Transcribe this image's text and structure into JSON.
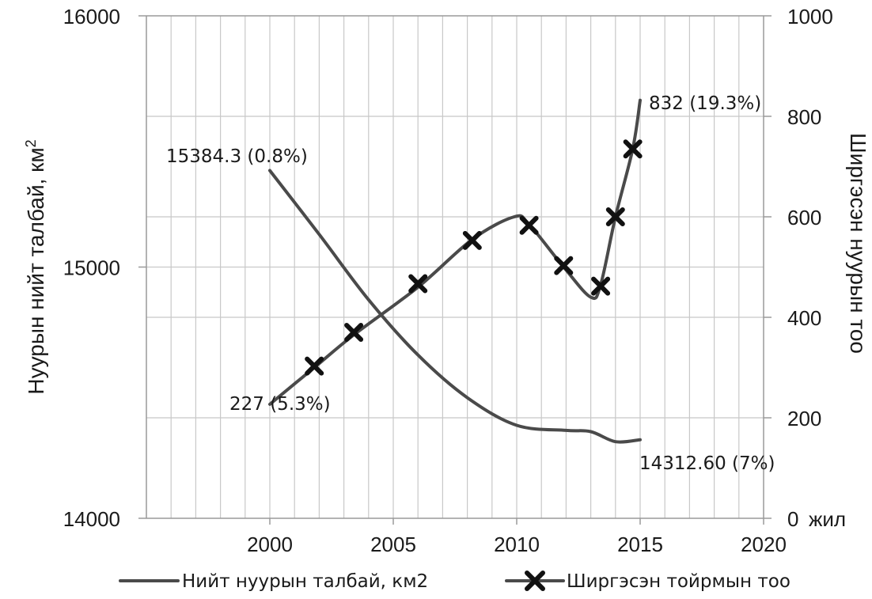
{
  "chart_data": {
    "type": "line",
    "title": "",
    "xlabel": "",
    "x_unit_label": "жил",
    "xlim": [
      1995,
      2020
    ],
    "x_ticks": [
      "2000",
      "2005",
      "2010",
      "2015",
      "2020"
    ],
    "y_left": {
      "label": "Нуурын нийт талбай,  км",
      "label_superscript": "2",
      "ylim": [
        14000,
        16000
      ],
      "ticks": [
        "14000",
        "15000",
        "16000"
      ]
    },
    "y_right": {
      "label": "Ширгэсэн нуурын тоо",
      "ylim": [
        0,
        1000
      ],
      "ticks": [
        "0",
        "200",
        "400",
        "600",
        "800",
        "1000"
      ]
    },
    "grid": true,
    "legend_position": "bottom",
    "series": [
      {
        "name": "Нийт нуурын талбай, км2",
        "axis": "left",
        "marker": "none",
        "x": [
          2000,
          2002,
          2004,
          2006,
          2008,
          2010,
          2012,
          2013,
          2014,
          2015
        ],
        "y": [
          15384.3,
          15130,
          14870,
          14650,
          14480,
          14370,
          14350,
          14345,
          14305,
          14312.6
        ]
      },
      {
        "name": "Ширгэсэн тойрмын тоо",
        "axis": "right",
        "marker": "x",
        "x": [
          2000,
          2001.8,
          2003.4,
          2006.0,
          2008.2,
          2009.9,
          2010.5,
          2011.9,
          2013.0,
          2013.4,
          2014.0,
          2014.7,
          2015.0
        ],
        "y": [
          227,
          300,
          365,
          460,
          555,
          600,
          585,
          500,
          440,
          465,
          600,
          735,
          832
        ],
        "marker_points": [
          {
            "x": 2001.8,
            "y": 303
          },
          {
            "x": 2003.4,
            "y": 370
          },
          {
            "x": 2006.0,
            "y": 467
          },
          {
            "x": 2008.2,
            "y": 553
          },
          {
            "x": 2010.5,
            "y": 583
          },
          {
            "x": 2011.9,
            "y": 503
          },
          {
            "x": 2013.4,
            "y": 462
          },
          {
            "x": 2014.0,
            "y": 600
          },
          {
            "x": 2014.7,
            "y": 735
          }
        ]
      }
    ],
    "annotations": [
      {
        "text": "15384.3 (0.8%)"
      },
      {
        "text": "832 (19.3%)"
      },
      {
        "text": "227 (5.3%)"
      },
      {
        "text": "14312.60 (7%)"
      }
    ]
  },
  "colors": {
    "series_line": "#4a4a4a",
    "marker": "#111111",
    "grid": "#c8c8c8"
  }
}
